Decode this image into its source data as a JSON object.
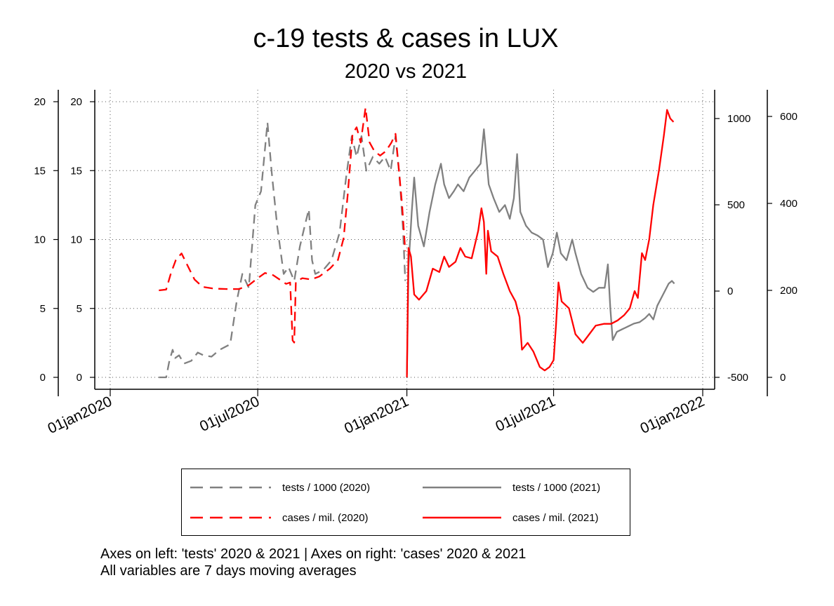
{
  "colors": {
    "tests": "#808080",
    "cases": "#ff0000"
  },
  "chart_data": {
    "type": "line",
    "title": "c-19 tests & cases in LUX",
    "subtitle": "2020 vs 2021",
    "x_axis": {
      "tick_labels": [
        "01jan2020",
        "01jul2020",
        "01jan2021",
        "01jul2021",
        "01jan2022"
      ],
      "tick_dates": [
        "2020-01-01",
        "2020-07-01",
        "2021-01-01",
        "2021-07-01",
        "2022-01-01"
      ],
      "range": [
        "2020-01-01",
        "2022-01-01"
      ]
    },
    "y_axes": {
      "tests_2020": {
        "side": "left",
        "range": [
          0,
          20
        ],
        "ticks": [
          0,
          5,
          10,
          15,
          20
        ]
      },
      "tests_2021": {
        "side": "left",
        "range": [
          0,
          20
        ],
        "ticks": [
          0,
          5,
          10,
          15,
          20
        ]
      },
      "cases_2021": {
        "side": "right",
        "range": [
          -500,
          1100
        ],
        "ticks": [
          -500,
          0,
          500,
          1000
        ]
      },
      "cases_2020": {
        "side": "right",
        "range": [
          0,
          620
        ],
        "ticks": [
          0,
          200,
          400,
          600
        ]
      }
    },
    "grid": true,
    "legend_position": "bottom",
    "series": [
      {
        "name": "tests / 1000 (2020)",
        "axis": "tests_2020",
        "color": "#808080",
        "dash": "dashed",
        "points": [
          [
            "2020-03-01",
            0
          ],
          [
            "2020-03-10",
            0
          ],
          [
            "2020-03-14",
            1.2
          ],
          [
            "2020-03-18",
            2
          ],
          [
            "2020-03-21",
            1.4
          ],
          [
            "2020-03-26",
            1.6
          ],
          [
            "2020-04-01",
            1
          ],
          [
            "2020-04-10",
            1.2
          ],
          [
            "2020-04-18",
            1.8
          ],
          [
            "2020-04-25",
            1.6
          ],
          [
            "2020-05-05",
            1.5
          ],
          [
            "2020-05-15",
            2
          ],
          [
            "2020-05-28",
            2.4
          ],
          [
            "2020-06-05",
            5.5
          ],
          [
            "2020-06-12",
            7.5
          ],
          [
            "2020-06-20",
            6.5
          ],
          [
            "2020-06-28",
            12.5
          ],
          [
            "2020-07-05",
            13.5
          ],
          [
            "2020-07-09",
            16
          ],
          [
            "2020-07-13",
            18.5
          ],
          [
            "2020-07-18",
            15
          ],
          [
            "2020-07-25",
            11
          ],
          [
            "2020-08-02",
            7.5
          ],
          [
            "2020-08-08",
            8
          ],
          [
            "2020-08-15",
            7
          ],
          [
            "2020-08-22",
            9.5
          ],
          [
            "2020-08-28",
            11
          ],
          [
            "2020-09-02",
            12.2
          ],
          [
            "2020-09-06",
            8.5
          ],
          [
            "2020-09-10",
            7.5
          ],
          [
            "2020-09-20",
            7.8
          ],
          [
            "2020-09-30",
            8.5
          ],
          [
            "2020-10-10",
            10.5
          ],
          [
            "2020-10-18",
            14.5
          ],
          [
            "2020-10-25",
            17.5
          ],
          [
            "2020-10-31",
            16
          ],
          [
            "2020-11-06",
            17.5
          ],
          [
            "2020-11-12",
            15
          ],
          [
            "2020-11-20",
            16
          ],
          [
            "2020-11-28",
            15.5
          ],
          [
            "2020-12-05",
            16
          ],
          [
            "2020-12-12",
            15
          ],
          [
            "2020-12-18",
            17.5
          ],
          [
            "2020-12-23",
            14.5
          ],
          [
            "2020-12-27",
            11
          ],
          [
            "2020-12-30",
            7
          ]
        ]
      },
      {
        "name": "tests / 1000 (2021)",
        "axis": "tests_2021",
        "color": "#808080",
        "dash": "solid",
        "points": [
          [
            "2021-01-01",
            0.2
          ],
          [
            "2021-01-03",
            8
          ],
          [
            "2021-01-07",
            12
          ],
          [
            "2021-01-10",
            14.5
          ],
          [
            "2021-01-15",
            11
          ],
          [
            "2021-01-22",
            9.5
          ],
          [
            "2021-01-29",
            12
          ],
          [
            "2021-02-05",
            14
          ],
          [
            "2021-02-12",
            15.5
          ],
          [
            "2021-02-16",
            14
          ],
          [
            "2021-02-22",
            13
          ],
          [
            "2021-02-28",
            13.5
          ],
          [
            "2021-03-05",
            14
          ],
          [
            "2021-03-12",
            13.5
          ],
          [
            "2021-03-19",
            14.5
          ],
          [
            "2021-03-26",
            15
          ],
          [
            "2021-04-02",
            15.5
          ],
          [
            "2021-04-06",
            18
          ],
          [
            "2021-04-12",
            14
          ],
          [
            "2021-04-18",
            13
          ],
          [
            "2021-04-25",
            12
          ],
          [
            "2021-05-02",
            12.5
          ],
          [
            "2021-05-08",
            11.5
          ],
          [
            "2021-05-13",
            13
          ],
          [
            "2021-05-17",
            16.2
          ],
          [
            "2021-05-21",
            12
          ],
          [
            "2021-05-28",
            11
          ],
          [
            "2021-06-04",
            10.5
          ],
          [
            "2021-06-11",
            10.3
          ],
          [
            "2021-06-18",
            10
          ],
          [
            "2021-06-24",
            8
          ],
          [
            "2021-06-30",
            9
          ],
          [
            "2021-07-05",
            10.5
          ],
          [
            "2021-07-10",
            9
          ],
          [
            "2021-07-17",
            8.5
          ],
          [
            "2021-07-24",
            10
          ],
          [
            "2021-07-28",
            9
          ],
          [
            "2021-08-04",
            7.5
          ],
          [
            "2021-08-12",
            6.5
          ],
          [
            "2021-08-19",
            6.2
          ],
          [
            "2021-08-26",
            6.5
          ],
          [
            "2021-09-02",
            6.5
          ],
          [
            "2021-09-06",
            8.2
          ],
          [
            "2021-09-09",
            5
          ],
          [
            "2021-09-12",
            2.7
          ],
          [
            "2021-09-17",
            3.3
          ],
          [
            "2021-09-24",
            3.5
          ],
          [
            "2021-10-01",
            3.7
          ],
          [
            "2021-10-08",
            3.9
          ],
          [
            "2021-10-15",
            4
          ],
          [
            "2021-10-22",
            4.3
          ],
          [
            "2021-10-27",
            4.6
          ],
          [
            "2021-11-01",
            4.2
          ],
          [
            "2021-11-06",
            5.2
          ],
          [
            "2021-11-13",
            6
          ],
          [
            "2021-11-20",
            6.8
          ],
          [
            "2021-11-24",
            7
          ],
          [
            "2021-11-27",
            6.8
          ]
        ]
      },
      {
        "name": "cases / mil. (2020)",
        "axis": "cases_2020",
        "color": "#ff0000",
        "dash": "dashed",
        "points": [
          [
            "2020-03-01",
            200
          ],
          [
            "2020-03-10",
            202
          ],
          [
            "2020-03-16",
            240
          ],
          [
            "2020-03-22",
            270
          ],
          [
            "2020-03-29",
            285
          ],
          [
            "2020-04-06",
            255
          ],
          [
            "2020-04-14",
            225
          ],
          [
            "2020-04-24",
            208
          ],
          [
            "2020-05-08",
            204
          ],
          [
            "2020-05-25",
            203
          ],
          [
            "2020-06-08",
            203
          ],
          [
            "2020-06-20",
            212
          ],
          [
            "2020-07-01",
            228
          ],
          [
            "2020-07-10",
            240
          ],
          [
            "2020-07-20",
            235
          ],
          [
            "2020-07-28",
            225
          ],
          [
            "2020-08-05",
            215
          ],
          [
            "2020-08-10",
            218
          ],
          [
            "2020-08-13",
            85
          ],
          [
            "2020-08-15",
            80
          ],
          [
            "2020-08-17",
            220
          ],
          [
            "2020-08-25",
            228
          ],
          [
            "2020-09-05",
            225
          ],
          [
            "2020-09-15",
            232
          ],
          [
            "2020-09-28",
            250
          ],
          [
            "2020-10-08",
            270
          ],
          [
            "2020-10-15",
            320
          ],
          [
            "2020-10-20",
            420
          ],
          [
            "2020-10-26",
            560
          ],
          [
            "2020-10-31",
            575
          ],
          [
            "2020-11-05",
            540
          ],
          [
            "2020-11-11",
            620
          ],
          [
            "2020-11-16",
            540
          ],
          [
            "2020-11-22",
            520
          ],
          [
            "2020-11-29",
            510
          ],
          [
            "2020-12-06",
            520
          ],
          [
            "2020-12-13",
            540
          ],
          [
            "2020-12-18",
            560
          ],
          [
            "2020-12-21",
            500
          ],
          [
            "2020-12-26",
            400
          ],
          [
            "2020-12-30",
            290
          ]
        ]
      },
      {
        "name": "cases / mil. (2021)",
        "axis": "cases_2021",
        "color": "#ff0000",
        "dash": "solid",
        "points": [
          [
            "2021-01-01",
            -500
          ],
          [
            "2021-01-03",
            250
          ],
          [
            "2021-01-06",
            200
          ],
          [
            "2021-01-10",
            -20
          ],
          [
            "2021-01-16",
            -50
          ],
          [
            "2021-01-25",
            0
          ],
          [
            "2021-02-02",
            130
          ],
          [
            "2021-02-10",
            110
          ],
          [
            "2021-02-16",
            200
          ],
          [
            "2021-02-22",
            140
          ],
          [
            "2021-03-02",
            170
          ],
          [
            "2021-03-08",
            250
          ],
          [
            "2021-03-14",
            200
          ],
          [
            "2021-03-22",
            190
          ],
          [
            "2021-03-30",
            350
          ],
          [
            "2021-04-03",
            480
          ],
          [
            "2021-04-06",
            400
          ],
          [
            "2021-04-09",
            100
          ],
          [
            "2021-04-11",
            350
          ],
          [
            "2021-04-15",
            230
          ],
          [
            "2021-04-23",
            200
          ],
          [
            "2021-04-30",
            100
          ],
          [
            "2021-05-08",
            0
          ],
          [
            "2021-05-15",
            -60
          ],
          [
            "2021-05-20",
            -150
          ],
          [
            "2021-05-23",
            -340
          ],
          [
            "2021-05-30",
            -300
          ],
          [
            "2021-06-06",
            -350
          ],
          [
            "2021-06-14",
            -440
          ],
          [
            "2021-06-20",
            -460
          ],
          [
            "2021-06-26",
            -440
          ],
          [
            "2021-07-01",
            -400
          ],
          [
            "2021-07-04",
            -200
          ],
          [
            "2021-07-07",
            50
          ],
          [
            "2021-07-11",
            -60
          ],
          [
            "2021-07-20",
            -100
          ],
          [
            "2021-07-28",
            -250
          ],
          [
            "2021-08-06",
            -300
          ],
          [
            "2021-08-14",
            -250
          ],
          [
            "2021-08-22",
            -200
          ],
          [
            "2021-09-01",
            -190
          ],
          [
            "2021-09-10",
            -190
          ],
          [
            "2021-09-18",
            -170
          ],
          [
            "2021-09-26",
            -140
          ],
          [
            "2021-10-03",
            -100
          ],
          [
            "2021-10-09",
            0
          ],
          [
            "2021-10-13",
            -40
          ],
          [
            "2021-10-18",
            220
          ],
          [
            "2021-10-22",
            180
          ],
          [
            "2021-10-27",
            300
          ],
          [
            "2021-11-01",
            500
          ],
          [
            "2021-11-08",
            700
          ],
          [
            "2021-11-14",
            900
          ],
          [
            "2021-11-18",
            1050
          ],
          [
            "2021-11-22",
            1000
          ],
          [
            "2021-11-26",
            980
          ]
        ]
      }
    ]
  },
  "notes": [
    "Axes on left: 'tests' 2020 & 2021 | Axes on right: 'cases' 2020 & 2021",
    "All variables are 7 days moving averages"
  ]
}
